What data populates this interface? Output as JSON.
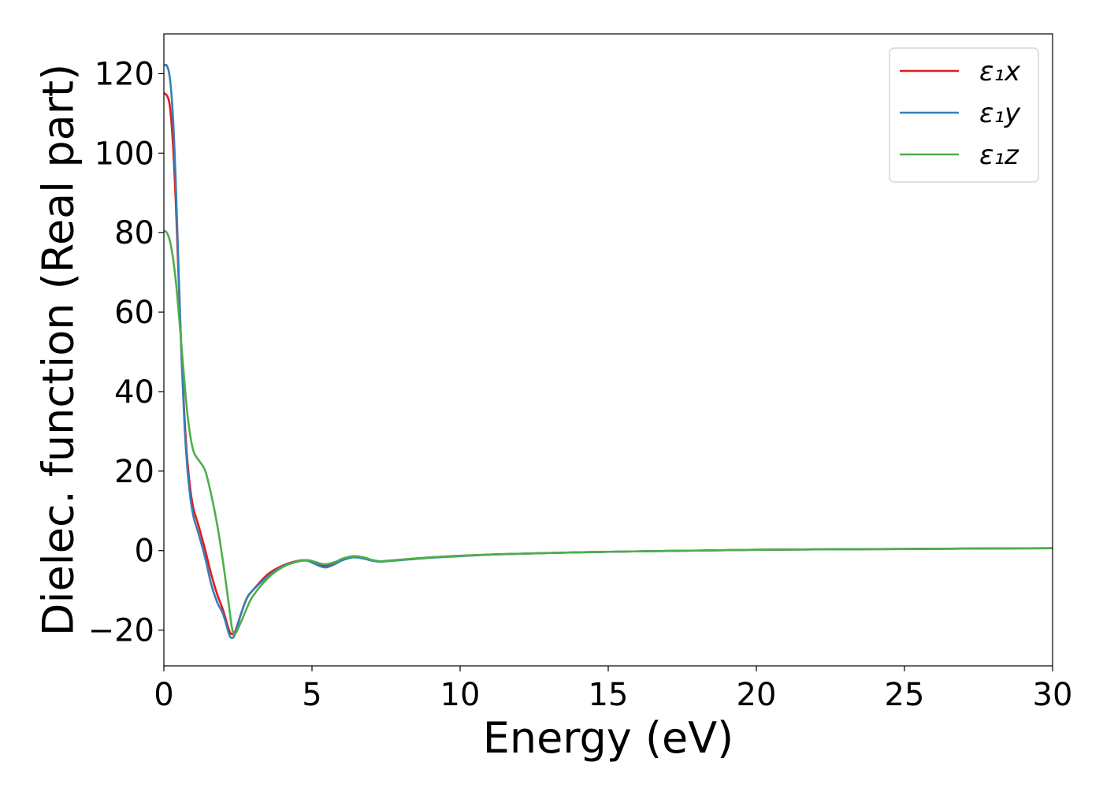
{
  "chart_data": {
    "type": "line",
    "title": "",
    "xlabel": "Energy (eV)",
    "ylabel": "Dielec. function (Real part)",
    "xlim": [
      0,
      30
    ],
    "ylim": [
      -29,
      130
    ],
    "xticks": [
      0,
      5,
      10,
      15,
      20,
      25,
      30
    ],
    "xtick_labels": [
      "0",
      "5",
      "10",
      "15",
      "20",
      "25",
      "30"
    ],
    "yticks": [
      -20,
      0,
      20,
      40,
      60,
      80,
      100,
      120
    ],
    "ytick_labels": [
      "−20",
      "0",
      "20",
      "40",
      "60",
      "80",
      "100",
      "120"
    ],
    "grid": false,
    "legend_position": "top-right",
    "series": [
      {
        "name": "ε₁x",
        "color": "#e41a1c",
        "x": [
          0,
          0.1,
          0.2,
          0.3,
          0.4,
          0.5,
          0.6,
          0.7,
          0.8,
          0.9,
          1.0,
          1.1,
          1.2,
          1.4,
          1.6,
          1.8,
          2.0,
          2.2,
          2.3,
          2.4,
          2.6,
          2.8,
          3.0,
          3.5,
          4.0,
          4.5,
          4.8,
          5.0,
          5.3,
          5.5,
          5.8,
          6.0,
          6.3,
          6.5,
          6.8,
          7.0,
          7.3,
          7.5,
          8.0,
          9.0,
          10.0,
          11.0,
          12.0,
          13.0,
          15.0,
          17.0,
          20.0,
          22.0,
          25.0,
          27.0,
          30.0
        ],
        "y": [
          115,
          114.5,
          112,
          103,
          88,
          68,
          48,
          33,
          22,
          15,
          10.5,
          8,
          5.5,
          0,
          -6,
          -11,
          -15,
          -20,
          -21,
          -20.5,
          -16,
          -12,
          -10,
          -6,
          -3.8,
          -2.6,
          -2.4,
          -2.8,
          -3.6,
          -3.8,
          -3.0,
          -2.2,
          -1.6,
          -1.5,
          -1.9,
          -2.4,
          -2.7,
          -2.6,
          -2.3,
          -1.7,
          -1.3,
          -1.0,
          -0.8,
          -0.6,
          -0.3,
          -0.1,
          0.2,
          0.3,
          0.4,
          0.5,
          0.6
        ]
      },
      {
        "name": "ε₁y",
        "color": "#377eb8",
        "x": [
          0,
          0.1,
          0.2,
          0.3,
          0.4,
          0.5,
          0.6,
          0.7,
          0.8,
          0.9,
          1.0,
          1.1,
          1.2,
          1.4,
          1.6,
          1.8,
          2.0,
          2.2,
          2.3,
          2.4,
          2.6,
          2.8,
          3.0,
          3.5,
          4.0,
          4.5,
          4.8,
          5.0,
          5.3,
          5.5,
          5.8,
          6.0,
          6.3,
          6.5,
          6.8,
          7.0,
          7.3,
          7.5,
          8.0,
          9.0,
          10.0,
          11.0,
          12.0,
          13.0,
          15.0,
          17.0,
          20.0,
          22.0,
          25.0,
          27.0,
          30.0
        ],
        "y": [
          122,
          122,
          119,
          110,
          93,
          70,
          48,
          31,
          20,
          13,
          8.5,
          6,
          3.5,
          -2,
          -8.5,
          -13,
          -16,
          -21,
          -22,
          -21,
          -16,
          -12,
          -10,
          -6.5,
          -4,
          -2.8,
          -2.5,
          -3,
          -4,
          -4.2,
          -3.3,
          -2.5,
          -1.8,
          -1.7,
          -2.1,
          -2.5,
          -2.8,
          -2.7,
          -2.4,
          -1.8,
          -1.4,
          -1.0,
          -0.8,
          -0.6,
          -0.3,
          -0.1,
          0.2,
          0.3,
          0.4,
          0.5,
          0.6
        ]
      },
      {
        "name": "ε₁z",
        "color": "#4daf4a",
        "x": [
          0,
          0.1,
          0.2,
          0.3,
          0.4,
          0.5,
          0.6,
          0.7,
          0.8,
          0.9,
          1.0,
          1.1,
          1.2,
          1.4,
          1.6,
          1.8,
          2.0,
          2.2,
          2.3,
          2.4,
          2.6,
          2.8,
          3.0,
          3.5,
          4.0,
          4.5,
          4.8,
          5.0,
          5.3,
          5.5,
          5.8,
          6.0,
          6.3,
          6.5,
          6.8,
          7.0,
          7.3,
          7.5,
          8.0,
          9.0,
          10.0,
          11.0,
          12.0,
          13.0,
          15.0,
          17.0,
          20.0,
          22.0,
          25.0,
          27.0,
          30.0
        ],
        "y": [
          80.5,
          80,
          78,
          74,
          68,
          60,
          51,
          42,
          34,
          28.5,
          25,
          23.5,
          22.5,
          20,
          14,
          6.5,
          -3,
          -14,
          -19.5,
          -21,
          -18,
          -14.5,
          -11.5,
          -7,
          -4.2,
          -2.7,
          -2.4,
          -2.6,
          -3.3,
          -3.4,
          -2.8,
          -2.1,
          -1.5,
          -1.4,
          -1.8,
          -2.3,
          -2.7,
          -2.6,
          -2.3,
          -1.7,
          -1.3,
          -1.0,
          -0.8,
          -0.6,
          -0.3,
          -0.1,
          0.2,
          0.3,
          0.4,
          0.5,
          0.6
        ]
      }
    ]
  }
}
